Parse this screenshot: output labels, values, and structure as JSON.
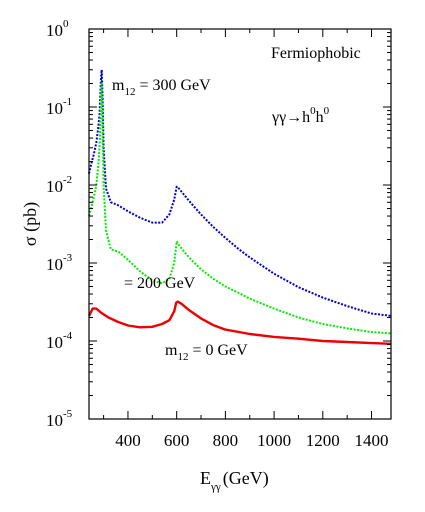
{
  "chart_data": {
    "type": "line",
    "title": "",
    "xlabel": {
      "main": "E",
      "sub": "γγ",
      "unit": "(GeV)"
    },
    "ylabel": "σ (pb)",
    "xlim": [
      240,
      1480
    ],
    "ylim_log10": [
      -5,
      0
    ],
    "y_scale": "log",
    "grid": false,
    "x_ticks": [
      400,
      600,
      800,
      1000,
      1200,
      1400
    ],
    "y_ticks": [
      {
        "base": "10",
        "exp": "0",
        "log": 0
      },
      {
        "base": "10",
        "exp": "-1",
        "log": -1
      },
      {
        "base": "10",
        "exp": "-2",
        "log": -2
      },
      {
        "base": "10",
        "exp": "-3",
        "log": -3
      },
      {
        "base": "10",
        "exp": "-4",
        "log": -4
      },
      {
        "base": "10",
        "exp": "-5",
        "log": -5
      }
    ],
    "annotations": {
      "model": "Fermiophobic",
      "process": {
        "pre": "γγ→h",
        "sup1": "0",
        "mid": "h",
        "sup2": "0"
      },
      "label_300": {
        "pre": "m",
        "sub": "12",
        "post": " = 300 GeV"
      },
      "label_200": "= 200 GeV",
      "label_0": {
        "pre": "m",
        "sub": "12",
        "post": " = 0 GeV"
      }
    },
    "series": [
      {
        "color": "#0000cc",
        "dash": "2,1.5",
        "x": [
          240,
          250,
          260,
          270,
          278,
          283,
          286,
          289,
          292,
          296,
          300,
          310,
          330,
          360,
          400,
          450,
          500,
          540,
          570,
          590,
          600,
          610,
          630,
          660,
          700,
          750,
          800,
          850,
          900,
          1000,
          1100,
          1200,
          1300,
          1400,
          1480
        ],
        "y": [
          0.014,
          0.019,
          0.025,
          0.035,
          0.055,
          0.08,
          0.13,
          0.22,
          0.3,
          0.13,
          0.03,
          0.009,
          0.006,
          0.0055,
          0.0046,
          0.0038,
          0.0033,
          0.0033,
          0.0042,
          0.0065,
          0.0095,
          0.009,
          0.0075,
          0.0058,
          0.0042,
          0.0029,
          0.0021,
          0.00155,
          0.00118,
          0.00073,
          0.00049,
          0.00036,
          0.00028,
          0.000225,
          0.00021
        ]
      },
      {
        "color": "#00ee00",
        "dash": "2,1.5",
        "x": [
          240,
          250,
          260,
          270,
          278,
          283,
          286,
          289,
          292,
          296,
          300,
          310,
          330,
          360,
          400,
          450,
          500,
          540,
          570,
          590,
          600,
          610,
          630,
          660,
          700,
          750,
          800,
          850,
          900,
          1000,
          1100,
          1200,
          1300,
          1400,
          1480
        ],
        "y": [
          0.004,
          0.0052,
          0.007,
          0.01,
          0.018,
          0.03,
          0.05,
          0.1,
          0.2,
          0.06,
          0.01,
          0.0026,
          0.0015,
          0.0014,
          0.0011,
          0.00078,
          0.0006,
          0.00055,
          0.00063,
          0.001,
          0.0019,
          0.0017,
          0.0014,
          0.0011,
          0.00083,
          0.00063,
          0.0005,
          0.00042,
          0.00035,
          0.00026,
          0.0002,
          0.000165,
          0.000145,
          0.00013,
          0.000125
        ]
      },
      {
        "color": "#ee0000",
        "dash": "",
        "x": [
          240,
          255,
          270,
          290,
          320,
          360,
          400,
          450,
          500,
          540,
          570,
          590,
          598,
          605,
          620,
          650,
          700,
          750,
          800,
          900,
          1000,
          1100,
          1200,
          1300,
          1400,
          1480
        ],
        "y": [
          0.00021,
          0.00026,
          0.00026,
          0.00023,
          0.0002,
          0.000175,
          0.000158,
          0.00015,
          0.000152,
          0.000165,
          0.000185,
          0.00024,
          0.00031,
          0.00032,
          0.0003,
          0.00025,
          0.000195,
          0.00016,
          0.00014,
          0.000123,
          0.000113,
          0.000107,
          0.0001,
          9.7e-05,
          9.4e-05,
          9.2e-05
        ]
      }
    ]
  }
}
